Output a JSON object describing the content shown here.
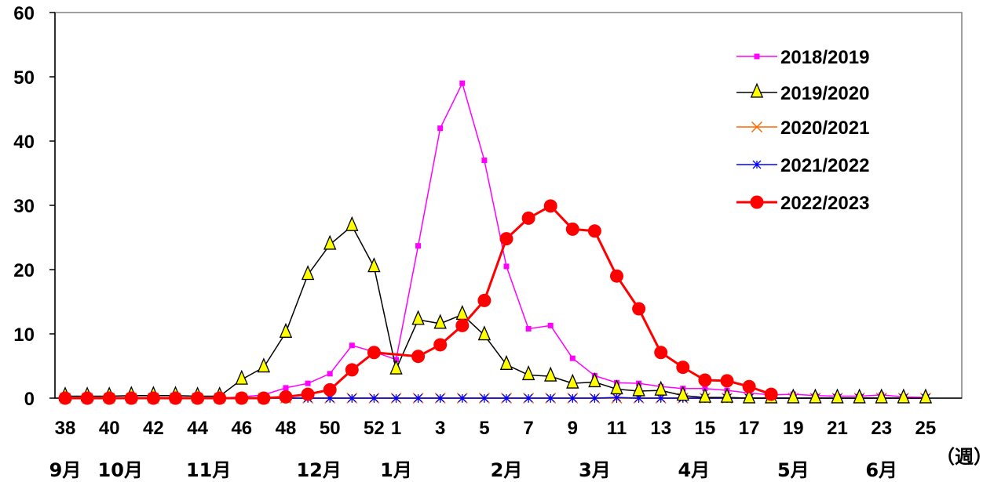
{
  "chart_data": {
    "type": "line",
    "x_weeks": [
      38,
      39,
      40,
      41,
      42,
      43,
      44,
      45,
      46,
      47,
      48,
      49,
      50,
      51,
      52,
      1,
      2,
      3,
      4,
      5,
      6,
      7,
      8,
      9,
      10,
      11,
      12,
      13,
      14,
      15,
      16,
      17,
      18,
      19,
      20,
      21,
      22,
      23,
      24,
      25
    ],
    "x_tick_labels": [
      "38",
      "40",
      "42",
      "44",
      "46",
      "48",
      "50",
      "52",
      "1",
      "3",
      "5",
      "7",
      "9",
      "11",
      "13",
      "15",
      "17",
      "19",
      "21",
      "23",
      "25"
    ],
    "x_unit_label": "（週）",
    "months": [
      {
        "label": "9月",
        "week": 38
      },
      {
        "label": "10月",
        "week": 40.5
      },
      {
        "label": "11月",
        "week": 44.5
      },
      {
        "label": "12月",
        "week": 49.5
      },
      {
        "label": "1月",
        "week": 1
      },
      {
        "label": "2月",
        "week": 6
      },
      {
        "label": "3月",
        "week": 10
      },
      {
        "label": "4月",
        "week": 14.5
      },
      {
        "label": "5月",
        "week": 19
      },
      {
        "label": "6月",
        "week": 23
      }
    ],
    "y_ticks": [
      "0",
      "10",
      "20",
      "30",
      "40",
      "50",
      "60"
    ],
    "ylim": [
      0,
      60
    ],
    "grid": false,
    "legend_position": "top-right",
    "series": [
      {
        "name": "2018/2019",
        "color": "#FF00FF",
        "marker": "square",
        "values": [
          0,
          0,
          0,
          0,
          0,
          0,
          0,
          0,
          0.2,
          0.5,
          1.6,
          2.3,
          3.8,
          8.2,
          7.2,
          6,
          23.7,
          42,
          49,
          37,
          20.5,
          10.8,
          11.3,
          6.2,
          3.5,
          2.4,
          2.3,
          1.8,
          1.5,
          1.5,
          1.2,
          0.8,
          0.5,
          0.6,
          0.4,
          0.3,
          0.3,
          0.5,
          0.2,
          0.1
        ]
      },
      {
        "name": "2019/2020",
        "color": "#000000",
        "marker": "triangle",
        "values": [
          0.3,
          0.3,
          0.3,
          0.4,
          0.4,
          0.4,
          0.3,
          0.3,
          2.9,
          4.8,
          10.2,
          19.2,
          23.9,
          26.8,
          20.4,
          4.5,
          12.2,
          11.6,
          13,
          9.8,
          5.2,
          3.6,
          3.4,
          2.3,
          2.5,
          1.4,
          1.1,
          1.2,
          0.4,
          0.1,
          0.1,
          0,
          0,
          0,
          0,
          0,
          0,
          0,
          0,
          0
        ]
      },
      {
        "name": "2020/2021",
        "color": "#FF6600",
        "marker": "x",
        "values": [
          0,
          0,
          0,
          0,
          0,
          0,
          0,
          0,
          0,
          0,
          0,
          0,
          0,
          0,
          0,
          0,
          0,
          0,
          0,
          0,
          0,
          0,
          0,
          0,
          0,
          0,
          0,
          0,
          0,
          0,
          0,
          0,
          0,
          0,
          0,
          0,
          0,
          0,
          0,
          0
        ]
      },
      {
        "name": "2021/2022",
        "color": "#0000FF",
        "marker": "asterisk",
        "values": [
          0,
          0,
          0,
          0,
          0,
          0,
          0,
          0,
          0,
          0,
          0,
          0,
          0,
          0,
          0,
          0,
          0,
          0,
          0,
          0,
          0,
          0,
          0,
          0,
          0,
          0.1,
          0,
          0,
          0,
          0,
          0,
          0,
          0,
          0,
          0,
          0,
          0,
          0,
          0,
          0
        ]
      },
      {
        "name": "2022/2023",
        "color": "#FF0000",
        "marker": "circle",
        "values": [
          0,
          0,
          0,
          0,
          0,
          0,
          0,
          0,
          0,
          0,
          0.2,
          0.6,
          1.3,
          4.4,
          7.1,
          null,
          6.5,
          8.3,
          11.3,
          15.2,
          24.8,
          28,
          29.9,
          26.3,
          26,
          19,
          13.9,
          7.1,
          4.8,
          2.8,
          2.7,
          1.8,
          0.6,
          null,
          null,
          null,
          null,
          null,
          null,
          null
        ]
      }
    ]
  }
}
